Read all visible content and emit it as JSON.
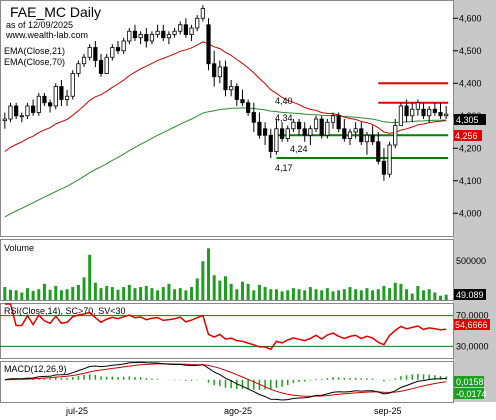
{
  "header": {
    "title": "FAE_MC Daily",
    "date_line": "as of 12/09/2025",
    "site": "www.wealth-lab.com",
    "ema_short": "EMA(Close,21)",
    "ema_long": "EMA(Close,70)"
  },
  "price_axis": {
    "ticks": [
      "4,600",
      "4,500",
      "4,400",
      "4,300",
      "4,200",
      "4,100",
      "4,000"
    ],
    "range": [
      3.93,
      4.65
    ]
  },
  "volume_pane": {
    "label": "Volume",
    "ticks": [
      "500000"
    ],
    "last_value": "49.089",
    "range": [
      0,
      520000
    ]
  },
  "rsi_pane": {
    "label": "RSI(Close,14), SC>70, SV<30",
    "ticks": [
      "70,0000",
      "30,0000"
    ],
    "last_value": "54,6666",
    "range": [
      15,
      85
    ]
  },
  "macd_pane": {
    "label": "MACD(12,26,9)",
    "tag_macd": "0,0158",
    "tag_hist": "-0,0174",
    "range": [
      -0.075,
      0.06
    ]
  },
  "time_axis": {
    "labels": [
      "jul-25",
      "ago-25",
      "sep-25"
    ]
  },
  "price_tags": {
    "last": "4,305",
    "ema": "4,256"
  },
  "annotations": [
    "4,40",
    "4,34",
    "4,24",
    "4,17"
  ],
  "colors": {
    "up": "#ffffff",
    "down": "#000000",
    "ema_short": "#cc0000",
    "ema_long": "#2e8b2e",
    "resistance": "#e00000",
    "support": "#008000",
    "volume": "#1e9e1e",
    "rsi": "#e00000",
    "rsi_bands": "#008000",
    "macd": "#000000",
    "signal": "#cc0000",
    "hist": "#1e9e1e",
    "axis_bg": "#c8c8c8"
  },
  "chart_data": {
    "type": "candlestick",
    "symbol": "FAE_MC",
    "interval": "Daily",
    "x_start": "2025-06-09",
    "x_end": "2025-09-12",
    "candles": [
      [
        4.285,
        4.31,
        4.26,
        4.29
      ],
      [
        4.29,
        4.34,
        4.28,
        4.33
      ],
      [
        4.33,
        4.34,
        4.29,
        4.3
      ],
      [
        4.3,
        4.31,
        4.28,
        4.3
      ],
      [
        4.3,
        4.34,
        4.29,
        4.33
      ],
      [
        4.33,
        4.35,
        4.3,
        4.31
      ],
      [
        4.31,
        4.37,
        4.3,
        4.36
      ],
      [
        4.36,
        4.37,
        4.33,
        4.34
      ],
      [
        4.34,
        4.35,
        4.31,
        4.33
      ],
      [
        4.33,
        4.4,
        4.32,
        4.39
      ],
      [
        4.39,
        4.41,
        4.33,
        4.35
      ],
      [
        4.35,
        4.38,
        4.33,
        4.36
      ],
      [
        4.36,
        4.44,
        4.35,
        4.43
      ],
      [
        4.43,
        4.47,
        4.42,
        4.46
      ],
      [
        4.46,
        4.49,
        4.45,
        4.48
      ],
      [
        4.48,
        4.52,
        4.47,
        4.51
      ],
      [
        4.51,
        4.53,
        4.45,
        4.47
      ],
      [
        4.47,
        4.49,
        4.42,
        4.43
      ],
      [
        4.43,
        4.49,
        4.43,
        4.48
      ],
      [
        4.48,
        4.52,
        4.47,
        4.51
      ],
      [
        4.51,
        4.53,
        4.49,
        4.5
      ],
      [
        4.5,
        4.54,
        4.49,
        4.53
      ],
      [
        4.53,
        4.57,
        4.52,
        4.56
      ],
      [
        4.56,
        4.58,
        4.53,
        4.54
      ],
      [
        4.54,
        4.56,
        4.52,
        4.55
      ],
      [
        4.55,
        4.57,
        4.51,
        4.53
      ],
      [
        4.53,
        4.56,
        4.52,
        4.55
      ],
      [
        4.55,
        4.58,
        4.54,
        4.56
      ],
      [
        4.56,
        4.58,
        4.53,
        4.54
      ],
      [
        4.54,
        4.56,
        4.52,
        4.55
      ],
      [
        4.55,
        4.57,
        4.54,
        4.56
      ],
      [
        4.56,
        4.59,
        4.55,
        4.58
      ],
      [
        4.58,
        4.6,
        4.54,
        4.55
      ],
      [
        4.55,
        4.58,
        4.53,
        4.57
      ],
      [
        4.57,
        4.61,
        4.56,
        4.6
      ],
      [
        4.6,
        4.64,
        4.59,
        4.63
      ],
      [
        4.58,
        4.6,
        4.44,
        4.46
      ],
      [
        4.46,
        4.5,
        4.39,
        4.42
      ],
      [
        4.42,
        4.47,
        4.4,
        4.45
      ],
      [
        4.45,
        4.47,
        4.36,
        4.38
      ],
      [
        4.38,
        4.41,
        4.36,
        4.39
      ],
      [
        4.39,
        4.4,
        4.33,
        4.35
      ],
      [
        4.35,
        4.38,
        4.33,
        4.34
      ],
      [
        4.34,
        4.35,
        4.3,
        4.31
      ],
      [
        4.31,
        4.34,
        4.25,
        4.28
      ],
      [
        4.28,
        4.31,
        4.23,
        4.24
      ],
      [
        4.26,
        4.28,
        4.21,
        4.24
      ],
      [
        4.24,
        4.26,
        4.17,
        4.19
      ],
      [
        4.19,
        4.29,
        4.18,
        4.26
      ],
      [
        4.26,
        4.28,
        4.22,
        4.23
      ],
      [
        4.23,
        4.27,
        4.22,
        4.26
      ],
      [
        4.26,
        4.29,
        4.25,
        4.28
      ],
      [
        4.28,
        4.29,
        4.24,
        4.26
      ],
      [
        4.26,
        4.28,
        4.22,
        4.24
      ],
      [
        4.24,
        4.27,
        4.21,
        4.26
      ],
      [
        4.26,
        4.3,
        4.25,
        4.29
      ],
      [
        4.29,
        4.3,
        4.23,
        4.24
      ],
      [
        4.24,
        4.29,
        4.23,
        4.28
      ],
      [
        4.28,
        4.31,
        4.26,
        4.3
      ],
      [
        4.3,
        4.31,
        4.25,
        4.26
      ],
      [
        4.26,
        4.29,
        4.22,
        4.23
      ],
      [
        4.23,
        4.26,
        4.21,
        4.25
      ],
      [
        4.25,
        4.28,
        4.23,
        4.26
      ],
      [
        4.26,
        4.28,
        4.21,
        4.22
      ],
      [
        4.22,
        4.25,
        4.18,
        4.24
      ],
      [
        4.24,
        4.27,
        4.21,
        4.22
      ],
      [
        4.22,
        4.25,
        4.15,
        4.16
      ],
      [
        4.16,
        4.2,
        4.1,
        4.12
      ],
      [
        4.12,
        4.22,
        4.11,
        4.21
      ],
      [
        4.21,
        4.29,
        4.2,
        4.27
      ],
      [
        4.27,
        4.34,
        4.27,
        4.33
      ],
      [
        4.33,
        4.35,
        4.28,
        4.3
      ],
      [
        4.3,
        4.34,
        4.28,
        4.32
      ],
      [
        4.32,
        4.35,
        4.3,
        4.34
      ],
      [
        4.32,
        4.34,
        4.29,
        4.3
      ],
      [
        4.3,
        4.33,
        4.28,
        4.32
      ],
      [
        4.32,
        4.34,
        4.3,
        4.31
      ],
      [
        4.31,
        4.34,
        4.29,
        4.3
      ],
      [
        4.3,
        4.33,
        4.29,
        4.305
      ]
    ],
    "volume": [
      120000,
      95000,
      90000,
      70000,
      110000,
      85000,
      100000,
      150000,
      95000,
      130000,
      90000,
      100000,
      120000,
      140000,
      210000,
      420000,
      160000,
      110000,
      130000,
      120000,
      95000,
      120000,
      140000,
      110000,
      120000,
      130000,
      110000,
      90000,
      120000,
      150000,
      100000,
      110000,
      90000,
      120000,
      200000,
      360000,
      480000,
      230000,
      180000,
      220000,
      150000,
      100000,
      170000,
      150000,
      90000,
      140000,
      120000,
      100000,
      100000,
      80000,
      90000,
      110000,
      100000,
      90000,
      120000,
      100000,
      90000,
      110000,
      80000,
      90000,
      100000,
      120000,
      100000,
      90000,
      110000,
      90000,
      100000,
      130000,
      110000,
      160000,
      150000,
      100000,
      60000,
      130000,
      90000,
      100000,
      70000,
      40000,
      49089
    ],
    "rsi_last": 54.6666,
    "rsi_bands": [
      70,
      30
    ],
    "macd_last": 0.0158,
    "hist_last": -0.0174,
    "resistance_levels": [
      4.4,
      4.34
    ],
    "support_levels": [
      4.24,
      4.17
    ],
    "y_axis_ticks": [
      4.0,
      4.1,
      4.2,
      4.3,
      4.4,
      4.5,
      4.6
    ],
    "ylim": [
      3.93,
      4.65
    ],
    "grid": false,
    "legend": "top-left"
  }
}
